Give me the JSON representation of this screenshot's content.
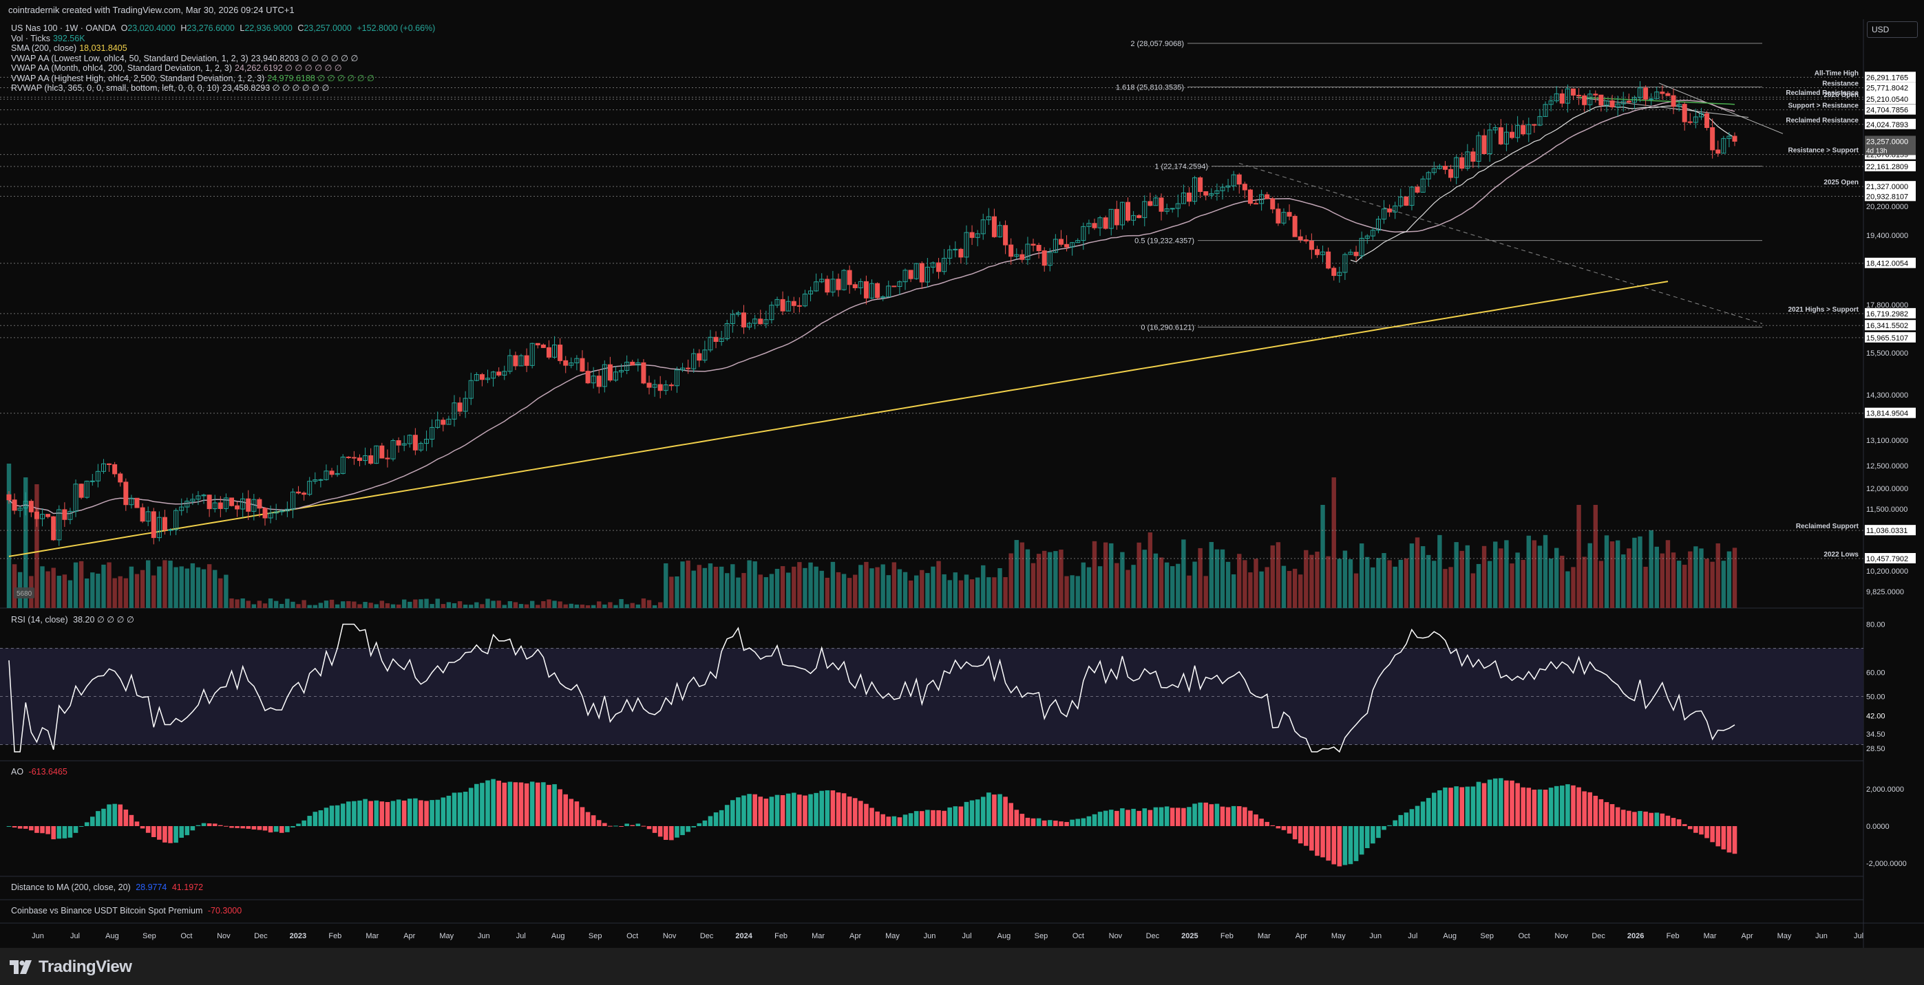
{
  "header": {
    "attribution": "cointradernik created with TradingView.com, Mar 30, 2026 09:24 UTC+1"
  },
  "currency_button": "USD",
  "legend": {
    "symbol": "US Nas 100 · 1W · OANDA",
    "ohlc": {
      "o_label": "O",
      "o": "23,020.4000",
      "h_label": "H",
      "h": "23,276.6000",
      "l_label": "L",
      "l": "22,936.9000",
      "c_label": "C",
      "c": "23,257.0000",
      "change": "+152.8000 (+0.66%)"
    },
    "lines": [
      {
        "label": "Vol · Ticks",
        "value": "392.56K",
        "color": "#26a69a"
      },
      {
        "label": "SMA (200, close)",
        "value": "18,031.8405",
        "color": "#f2d14b"
      },
      {
        "label": "VWAP AA (Lowest Low, ohlc4, 50, Standard Deviation, 1, 2, 3)",
        "value": "23,940.8203  ∅ ∅ ∅ ∅ ∅ ∅",
        "color": "#d1d4dc"
      },
      {
        "label": "VWAP AA (Month, ohlc4, 200, Standard Deviation, 1, 2, 3)",
        "value": "24,262.6192  ∅ ∅ ∅ ∅ ∅ ∅",
        "color": "#c3a7b7"
      },
      {
        "label": "VWAP AA (Highest High, ohlc4, 2,500, Standard Deviation, 1, 2, 3)",
        "value": "24,979.6188  ∅ ∅ ∅ ∅ ∅ ∅",
        "color": "#4caf50"
      },
      {
        "label": "RVWAP (hlc3, 365, 0, 0, small, bottom, left, 0, 0, 0, 10)",
        "value": "23,458.8293  ∅ ∅ ∅ ∅ ∅ ∅",
        "color": "#d1d4dc"
      }
    ]
  },
  "panels": {
    "rsi": {
      "label": "RSI (14, close)",
      "value": "38.20  ∅ ∅ ∅ ∅",
      "color": "#d1d4dc"
    },
    "ao": {
      "label": "AO",
      "value": "-613.6465",
      "color": "#f23645"
    },
    "dist": {
      "label": "Distance to MA (200, close, 20)",
      "value1": "28.9774",
      "value2": "41.1972",
      "color1": "#2962ff",
      "color2": "#f23645"
    },
    "premium": {
      "label": "Coinbase vs Binance USDT Bitcoin Spot Premium",
      "value": "-70.3000",
      "color": "#f23645"
    }
  },
  "volume_badge": "5680",
  "brand": "TradingView",
  "chart_data": {
    "type": "candlestick",
    "timeframe": "1W",
    "price_axis": {
      "scale": "log",
      "ticks": [
        "20,200.0000",
        "19,400.0000",
        "17,800.0000",
        "17,000.0000",
        "15,500.0000",
        "14,300.0000",
        "13,100.0000",
        "12,500.0000",
        "12,000.0000",
        "11,500.0000",
        "10,200.0000",
        "9,825.0000"
      ]
    },
    "time_axis": {
      "ticks": [
        "Jun",
        "Jul",
        "Aug",
        "Sep",
        "Oct",
        "Nov",
        "Dec",
        "2023",
        "Feb",
        "Mar",
        "Apr",
        "May",
        "Jun",
        "Jul",
        "Aug",
        "Sep",
        "Oct",
        "Nov",
        "Dec",
        "2024",
        "Feb",
        "Mar",
        "Apr",
        "May",
        "Jun",
        "Jul",
        "Aug",
        "Sep",
        "Oct",
        "Nov",
        "Dec",
        "2025",
        "Feb",
        "Mar",
        "Apr",
        "May",
        "Jun",
        "Jul",
        "Aug",
        "Sep",
        "Oct",
        "Nov",
        "Dec",
        "2026",
        "Feb",
        "Mar",
        "Apr",
        "May",
        "Jun",
        "Jul"
      ]
    },
    "fib_levels": [
      {
        "label": "2 (28,057.9068)",
        "price": 28057.9068
      },
      {
        "label": "1.618 (25,810.3535)",
        "price": 25810.3535
      },
      {
        "label": "1 (22,174.2594)",
        "price": 22174.2594
      },
      {
        "label": "0.5 (19,232.4357)",
        "price": 19232.4357
      },
      {
        "label": "0 (16,290.6121)",
        "price": 16290.6121
      }
    ],
    "levels": [
      {
        "label": "All-Time High",
        "price": 26291.1765,
        "price_label": "26,291.1765"
      },
      {
        "label": "Resistance",
        "price": 25771.8042,
        "price_label": "25,771.8042"
      },
      {
        "label": "Reclaimed Resistance",
        "price": 25310.0,
        "price_label": "25,310.0000"
      },
      {
        "label": "2026 Open",
        "price": 25210.054,
        "price_label": "25,210.0540"
      },
      {
        "label": "Support > Resistance",
        "price": 24704.7856,
        "price_label": "24,704.7856"
      },
      {
        "label": "Reclaimed Resistance",
        "price": 24024.7893,
        "price_label": "24,024.7893"
      },
      {
        "label": "Resistance > Support",
        "price": 22676.8159,
        "price_label": "22,676.8159"
      },
      {
        "label": "",
        "price": 22161.2809,
        "price_label": "22,161.2809"
      },
      {
        "label": "2025 Open",
        "price": 21327.0,
        "price_label": "21,327.0000"
      },
      {
        "label": "",
        "price": 20932.8107,
        "price_label": "20,932.8107"
      },
      {
        "label": "",
        "price": 18412.0054,
        "price_label": "18,412.0054"
      },
      {
        "label": "2021 Highs > Support",
        "price": 16719.2982,
        "price_label": "16,719.2982"
      },
      {
        "label": "",
        "price": 16341.5502,
        "price_label": "16,341.5502"
      },
      {
        "label": "",
        "price": 15965.5107,
        "price_label": "15,965.5107"
      },
      {
        "label": "",
        "price": 13814.9504,
        "price_label": "13,814.9504"
      },
      {
        "label": "Reclaimed Support",
        "price": 11036.0331,
        "price_label": "11,036.0331"
      },
      {
        "label": "2022 Lows",
        "price": 10457.7902,
        "price_label": "10,457.7902"
      }
    ],
    "last_price": {
      "value": "23,257.0000",
      "countdown": "4d 13h"
    },
    "rsi_axis": [
      "80.00",
      "60.00",
      "50.00",
      "42.00",
      "34.50",
      "28.50"
    ],
    "ao_axis": [
      "2,000.0000",
      "0.0000",
      "-2,000.0000"
    ],
    "anchors": [
      {
        "i": 0,
        "p": 11650
      },
      {
        "i": 8,
        "p": 11050
      },
      {
        "i": 16,
        "p": 12600
      },
      {
        "i": 26,
        "p": 11100
      },
      {
        "i": 36,
        "p": 11750
      },
      {
        "i": 48,
        "p": 11400
      },
      {
        "i": 60,
        "p": 12650
      },
      {
        "i": 74,
        "p": 13050
      },
      {
        "i": 84,
        "p": 14700
      },
      {
        "i": 96,
        "p": 15700
      },
      {
        "i": 106,
        "p": 14800
      },
      {
        "i": 112,
        "p": 15000
      },
      {
        "i": 118,
        "p": 14400
      },
      {
        "i": 130,
        "p": 16400
      },
      {
        "i": 144,
        "p": 17350
      },
      {
        "i": 150,
        "p": 17900
      },
      {
        "i": 156,
        "p": 17350
      },
      {
        "i": 168,
        "p": 18500
      },
      {
        "i": 176,
        "p": 19900
      },
      {
        "i": 180,
        "p": 19000
      },
      {
        "i": 186,
        "p": 18750
      },
      {
        "i": 194,
        "p": 19800
      },
      {
        "i": 206,
        "p": 20700
      },
      {
        "i": 214,
        "p": 21300
      },
      {
        "i": 220,
        "p": 21350
      },
      {
        "i": 226,
        "p": 20600
      },
      {
        "i": 232,
        "p": 19600
      },
      {
        "i": 236,
        "p": 18700
      },
      {
        "i": 238,
        "p": 17700
      },
      {
        "i": 241,
        "p": 18800
      },
      {
        "i": 248,
        "p": 20200
      },
      {
        "i": 256,
        "p": 21650
      },
      {
        "i": 266,
        "p": 23400
      },
      {
        "i": 274,
        "p": 24300
      },
      {
        "i": 280,
        "p": 25350
      },
      {
        "i": 288,
        "p": 25400
      },
      {
        "i": 296,
        "p": 25100
      },
      {
        "i": 303,
        "p": 24400
      },
      {
        "i": 307,
        "p": 23050
      },
      {
        "i": 310,
        "p": 23257
      }
    ]
  }
}
